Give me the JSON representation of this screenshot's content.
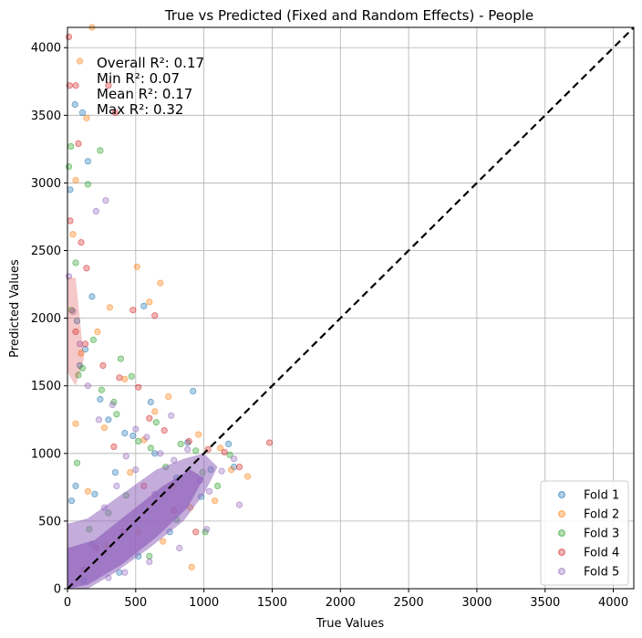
{
  "chart_data": {
    "type": "scatter",
    "title": "True vs Predicted (Fixed and Random Effects) - People",
    "xlabel": "True Values",
    "ylabel": "Predicted Values",
    "xlim": [
      0,
      4150
    ],
    "ylim": [
      0,
      4150
    ],
    "x_ticks": [
      "0",
      "500",
      "1000",
      "1500",
      "2000",
      "2500",
      "3000",
      "3500",
      "4000"
    ],
    "y_ticks": [
      "0",
      "500",
      "1000",
      "1500",
      "2000",
      "2500",
      "3000",
      "3500",
      "4000"
    ],
    "grid": true,
    "legend_position": "lower-right",
    "reference_line": {
      "style": "dashed",
      "color": "#000000",
      "from": [
        0,
        0
      ],
      "to": [
        4150,
        4150
      ]
    },
    "annotations": [
      "Overall R²: 0.17",
      "Min R²: 0.07",
      "Mean R²: 0.17",
      "Max R²: 0.32"
    ],
    "series": [
      {
        "name": "Fold 1",
        "color": "#1f77b4",
        "points": [
          [
            30,
            650
          ],
          [
            60,
            760
          ],
          [
            110,
            3520
          ],
          [
            150,
            3160
          ],
          [
            55,
            3580
          ],
          [
            20,
            2950
          ],
          [
            180,
            2160
          ],
          [
            560,
            2090
          ],
          [
            920,
            1460
          ],
          [
            70,
            1980
          ],
          [
            130,
            1770
          ],
          [
            240,
            1400
          ],
          [
            300,
            1250
          ],
          [
            420,
            1150
          ],
          [
            640,
            1000
          ],
          [
            800,
            820
          ],
          [
            880,
            1080
          ],
          [
            1050,
            880
          ],
          [
            1180,
            1070
          ],
          [
            1220,
            900
          ],
          [
            980,
            680
          ],
          [
            750,
            420
          ],
          [
            520,
            240
          ],
          [
            380,
            120
          ],
          [
            120,
            60
          ],
          [
            200,
            700
          ],
          [
            350,
            860
          ],
          [
            480,
            1130
          ],
          [
            610,
            1380
          ],
          [
            90,
            1650
          ]
        ]
      },
      {
        "name": "Fold 2",
        "color": "#ff7f0e",
        "points": [
          [
            180,
            4150
          ],
          [
            90,
            3900
          ],
          [
            140,
            3480
          ],
          [
            60,
            3020
          ],
          [
            40,
            2620
          ],
          [
            510,
            2380
          ],
          [
            680,
            2260
          ],
          [
            600,
            2120
          ],
          [
            220,
            1900
          ],
          [
            310,
            2080
          ],
          [
            100,
            1740
          ],
          [
            420,
            1550
          ],
          [
            740,
            1420
          ],
          [
            270,
            1190
          ],
          [
            560,
            1100
          ],
          [
            960,
            1140
          ],
          [
            1120,
            1040
          ],
          [
            1200,
            880
          ],
          [
            1320,
            830
          ],
          [
            900,
            600
          ],
          [
            700,
            350
          ],
          [
            910,
            160
          ],
          [
            520,
            420
          ],
          [
            640,
            1310
          ],
          [
            460,
            860
          ],
          [
            150,
            720
          ],
          [
            280,
            320
          ],
          [
            770,
            760
          ],
          [
            1080,
            650
          ],
          [
            60,
            1220
          ]
        ]
      },
      {
        "name": "Fold 3",
        "color": "#2ca02c",
        "points": [
          [
            10,
            3120
          ],
          [
            25,
            3270
          ],
          [
            150,
            2990
          ],
          [
            240,
            3240
          ],
          [
            60,
            2410
          ],
          [
            30,
            2060
          ],
          [
            190,
            1840
          ],
          [
            110,
            1630
          ],
          [
            250,
            1470
          ],
          [
            390,
            1700
          ],
          [
            470,
            1570
          ],
          [
            80,
            1580
          ],
          [
            340,
            1380
          ],
          [
            520,
            1090
          ],
          [
            610,
            1040
          ],
          [
            720,
            900
          ],
          [
            830,
            1070
          ],
          [
            990,
            860
          ],
          [
            1100,
            760
          ],
          [
            1190,
            990
          ],
          [
            430,
            690
          ],
          [
            300,
            560
          ],
          [
            600,
            240
          ],
          [
            800,
            510
          ],
          [
            940,
            1020
          ],
          [
            160,
            440
          ],
          [
            70,
            930
          ],
          [
            360,
            1290
          ],
          [
            650,
            1230
          ],
          [
            1010,
            420
          ]
        ]
      },
      {
        "name": "Fold 4",
        "color": "#d62728",
        "points": [
          [
            10,
            4080
          ],
          [
            15,
            3720
          ],
          [
            60,
            3720
          ],
          [
            80,
            3290
          ],
          [
            100,
            2560
          ],
          [
            140,
            2370
          ],
          [
            20,
            2720
          ],
          [
            300,
            3720
          ],
          [
            350,
            3520
          ],
          [
            480,
            2060
          ],
          [
            640,
            2020
          ],
          [
            60,
            1900
          ],
          [
            130,
            1810
          ],
          [
            260,
            1650
          ],
          [
            380,
            1560
          ],
          [
            520,
            1490
          ],
          [
            710,
            1170
          ],
          [
            890,
            1090
          ],
          [
            1030,
            1030
          ],
          [
            1150,
            1010
          ],
          [
            1260,
            900
          ],
          [
            1480,
            1080
          ],
          [
            340,
            1050
          ],
          [
            560,
            760
          ],
          [
            780,
            580
          ],
          [
            940,
            420
          ],
          [
            410,
            420
          ],
          [
            210,
            300
          ],
          [
            120,
            140
          ],
          [
            600,
            1260
          ]
        ]
      },
      {
        "name": "Fold 5",
        "color": "#9467bd",
        "points": [
          [
            210,
            2790
          ],
          [
            280,
            2870
          ],
          [
            10,
            2310
          ],
          [
            40,
            2050
          ],
          [
            90,
            1810
          ],
          [
            150,
            1500
          ],
          [
            230,
            1250
          ],
          [
            330,
            1360
          ],
          [
            430,
            980
          ],
          [
            500,
            1180
          ],
          [
            580,
            1120
          ],
          [
            680,
            1000
          ],
          [
            780,
            950
          ],
          [
            880,
            1030
          ],
          [
            970,
            800
          ],
          [
            1040,
            720
          ],
          [
            1130,
            870
          ],
          [
            1220,
            960
          ],
          [
            1260,
            620
          ],
          [
            1020,
            440
          ],
          [
            820,
            300
          ],
          [
            600,
            200
          ],
          [
            420,
            120
          ],
          [
            300,
            80
          ],
          [
            180,
            330
          ],
          [
            270,
            600
          ],
          [
            360,
            760
          ],
          [
            500,
            880
          ],
          [
            640,
            700
          ],
          [
            760,
            1280
          ]
        ]
      }
    ]
  }
}
